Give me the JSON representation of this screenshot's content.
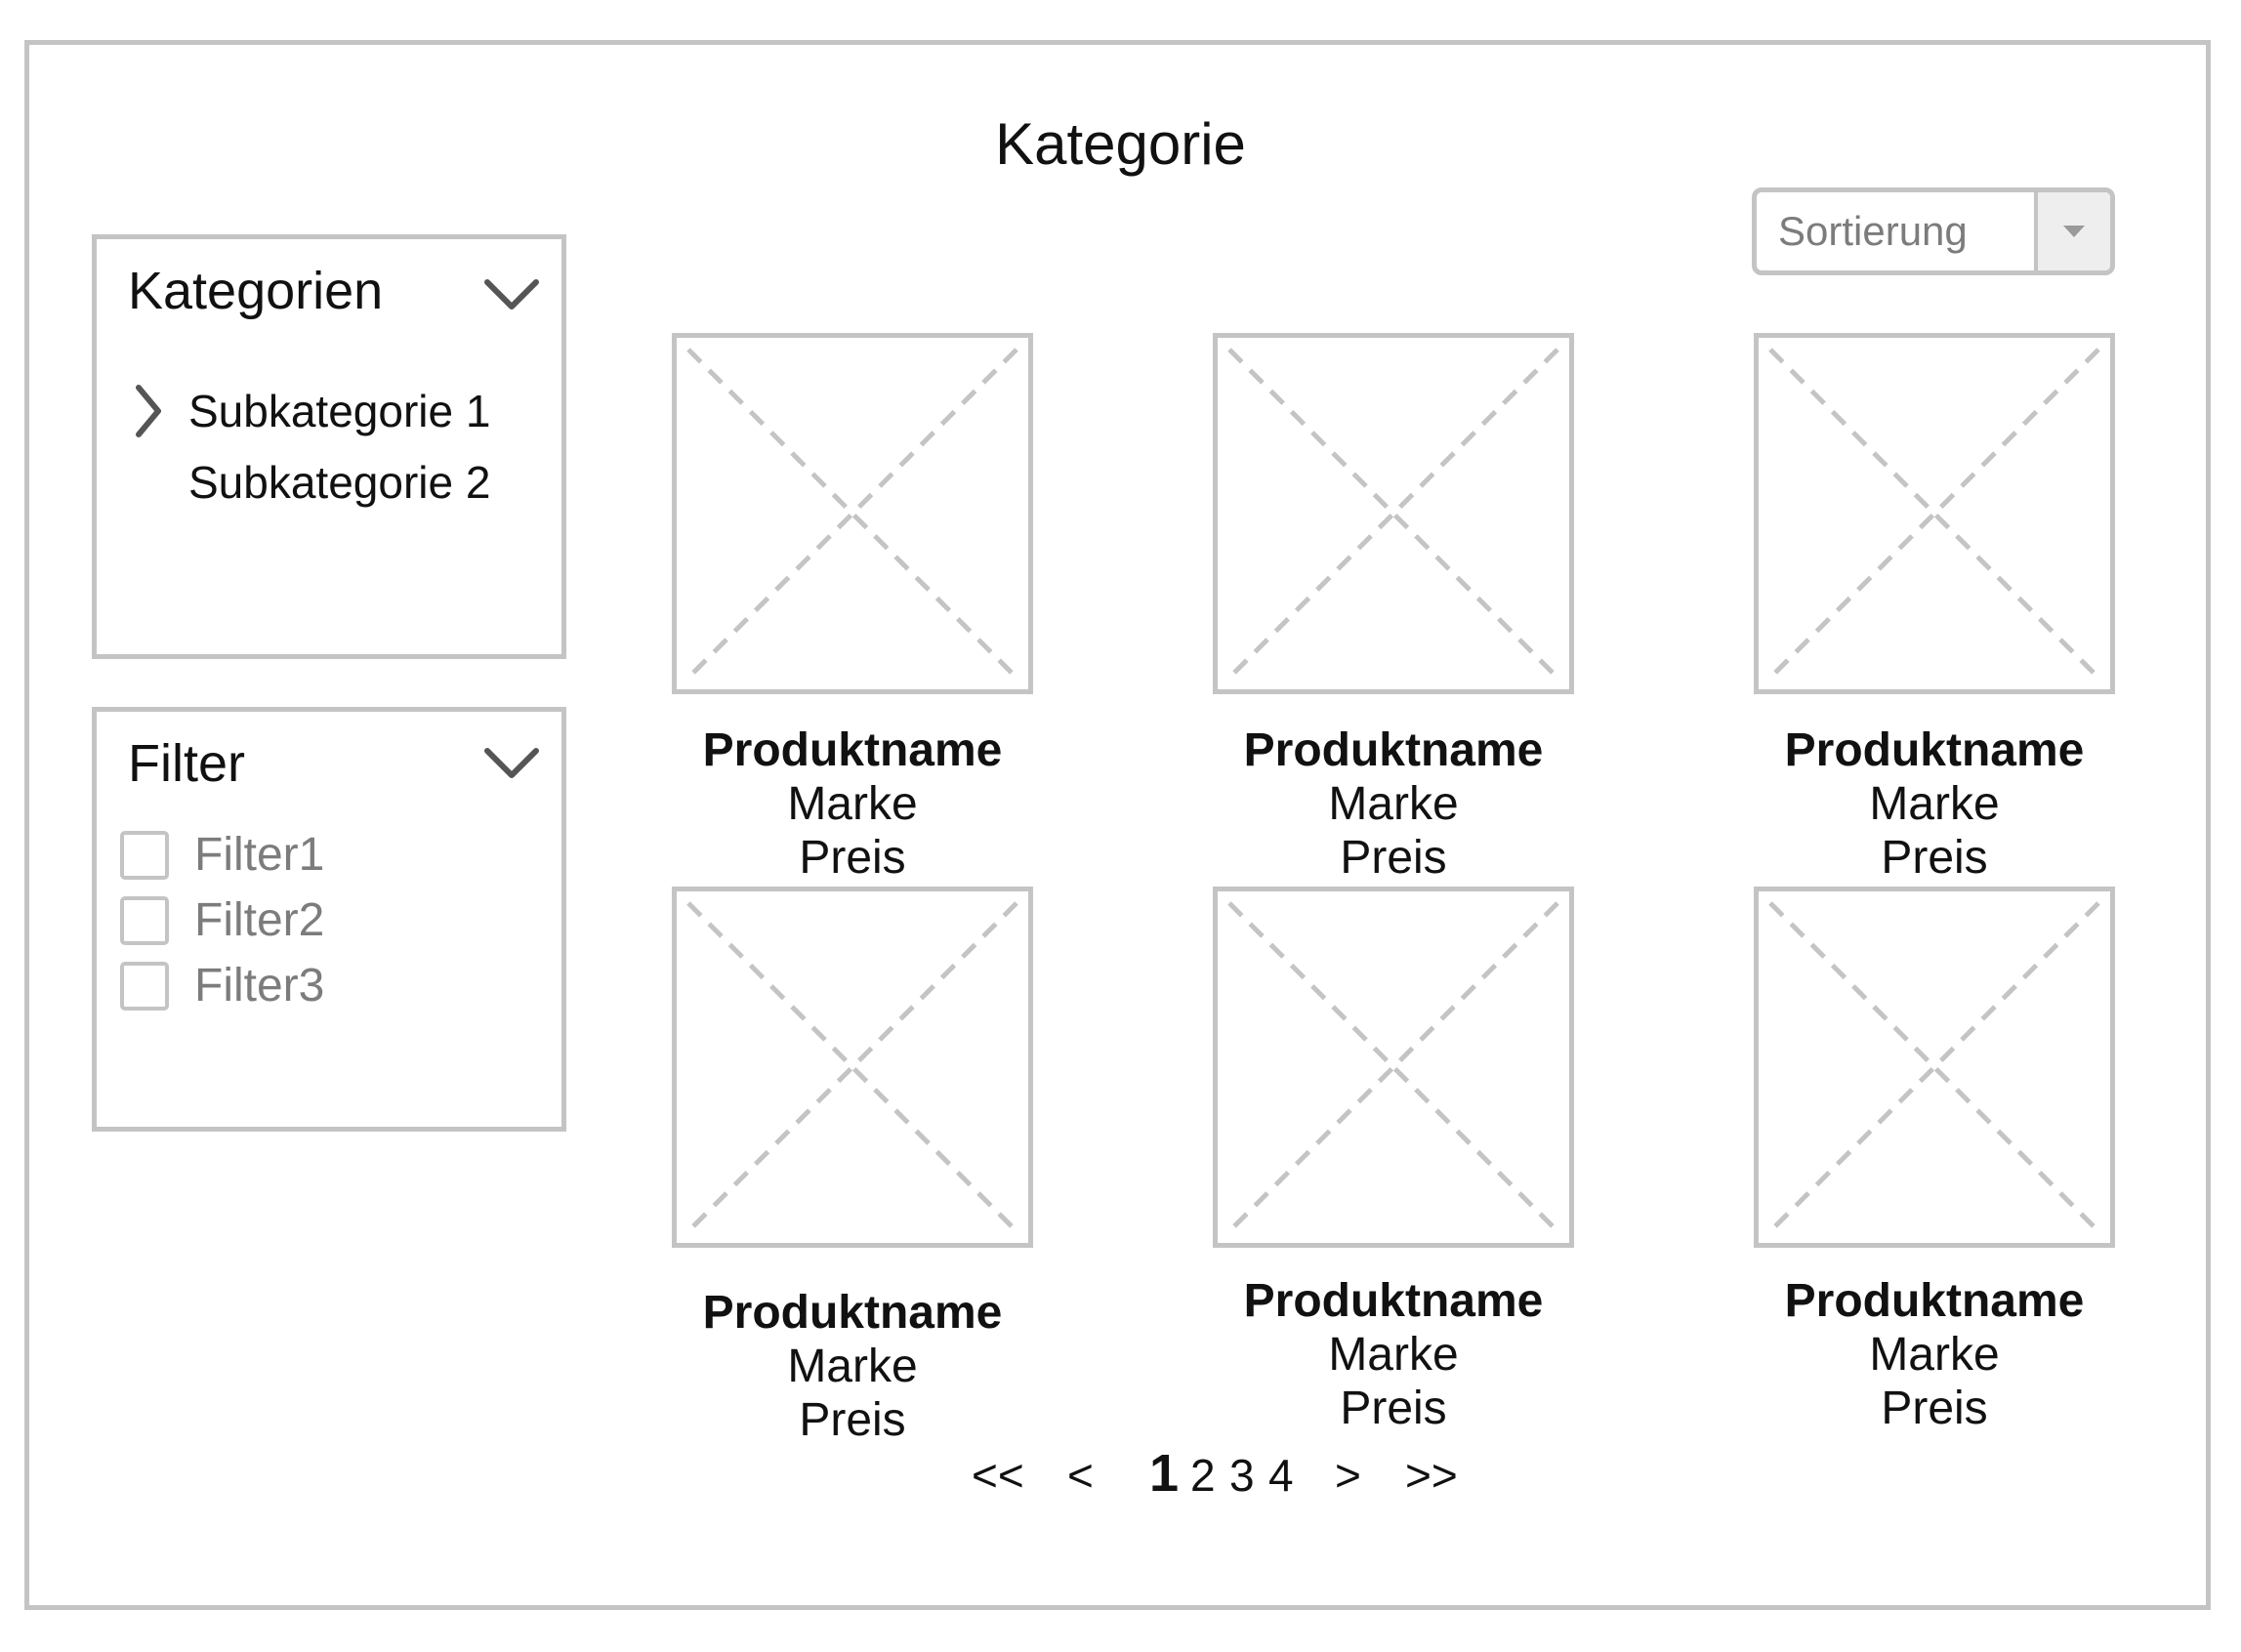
{
  "page": {
    "title": "Kategorie"
  },
  "sort": {
    "label": "Sortierung"
  },
  "categories_panel": {
    "title": "Kategorien",
    "items": [
      {
        "label": "Subkategorie 1",
        "has_arrow": true
      },
      {
        "label": "Subkategorie 2",
        "has_arrow": false
      }
    ]
  },
  "filter_panel": {
    "title": "Filter",
    "items": [
      {
        "label": "Filter1",
        "checked": false
      },
      {
        "label": "Filter2",
        "checked": false
      },
      {
        "label": "Filter3",
        "checked": false
      }
    ]
  },
  "products": [
    {
      "name": "Produktname",
      "brand": "Marke",
      "price": "Preis"
    },
    {
      "name": "Produktname",
      "brand": "Marke",
      "price": "Preis"
    },
    {
      "name": "Produktname",
      "brand": "Marke",
      "price": "Preis"
    },
    {
      "name": "Produktname",
      "brand": "Marke",
      "price": "Preis"
    },
    {
      "name": "Produktname",
      "brand": "Marke",
      "price": "Preis"
    },
    {
      "name": "Produktname",
      "brand": "Marke",
      "price": "Preis"
    }
  ],
  "pagination": {
    "first": "<<",
    "prev": "<",
    "pages": [
      "1",
      "2",
      "3",
      "4"
    ],
    "current": "1",
    "next": ">",
    "last": ">>"
  },
  "colors": {
    "border": "#c4c4c4",
    "muted_text": "#7c7c7c",
    "text": "#111111",
    "chevron": "#555555"
  },
  "icons": {
    "panel_toggle": "chevron-down-icon",
    "submenu": "chevron-right-icon",
    "dropdown": "caret-down-icon",
    "image_placeholder": "image-placeholder-icon"
  }
}
